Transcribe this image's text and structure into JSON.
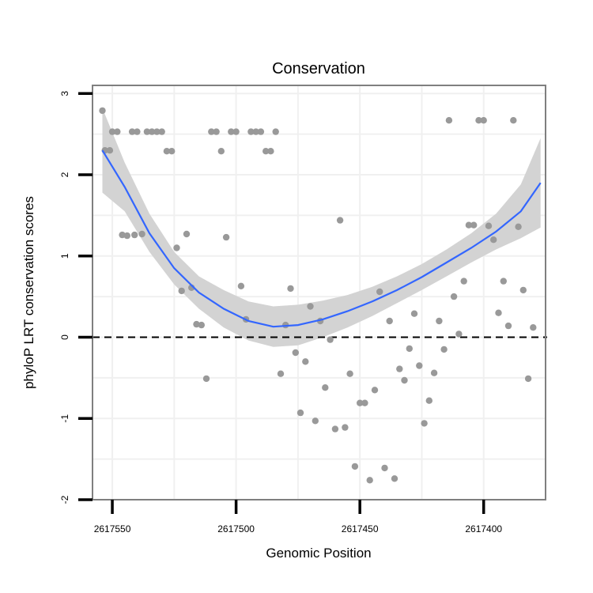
{
  "chart_data": {
    "type": "scatter",
    "title": "Conservation",
    "xlabel": "Genomic Position",
    "ylabel": "phyloP LRT conservation scores",
    "x_reversed": true,
    "xlim": [
      2617558,
      2617375
    ],
    "ylim": [
      -2,
      3.1
    ],
    "x_ticks": [
      2617550,
      2617500,
      2617450,
      2617400
    ],
    "x_tick_labels": [
      "2617550",
      "2617500",
      "2617450",
      "2617400"
    ],
    "y_ticks": [
      -2,
      -1,
      0,
      1,
      2,
      3
    ],
    "y_tick_labels": [
      "-2",
      "-1",
      "0",
      "1",
      "2",
      "3"
    ],
    "reference_line": {
      "y": 0,
      "style": "dashed"
    },
    "colors": {
      "points": "#999999",
      "smooth": "#3366ff",
      "ribbon": "#d3d3d3",
      "grid": "#f0f0f0",
      "frame": "#7f7f7f"
    },
    "points": [
      {
        "x": 2617554,
        "y": 2.79
      },
      {
        "x": 2617553,
        "y": 2.3
      },
      {
        "x": 2617551,
        "y": 2.3
      },
      {
        "x": 2617550,
        "y": 2.53
      },
      {
        "x": 2617548,
        "y": 2.53
      },
      {
        "x": 2617546,
        "y": 1.26
      },
      {
        "x": 2617544,
        "y": 1.25
      },
      {
        "x": 2617542,
        "y": 2.53
      },
      {
        "x": 2617541,
        "y": 1.26
      },
      {
        "x": 2617540,
        "y": 2.53
      },
      {
        "x": 2617538,
        "y": 1.27
      },
      {
        "x": 2617536,
        "y": 2.53
      },
      {
        "x": 2617534,
        "y": 2.53
      },
      {
        "x": 2617532,
        "y": 2.53
      },
      {
        "x": 2617530,
        "y": 2.53
      },
      {
        "x": 2617528,
        "y": 2.29
      },
      {
        "x": 2617526,
        "y": 2.29
      },
      {
        "x": 2617524,
        "y": 1.1
      },
      {
        "x": 2617522,
        "y": 0.57
      },
      {
        "x": 2617520,
        "y": 1.27
      },
      {
        "x": 2617518,
        "y": 0.61
      },
      {
        "x": 2617516,
        "y": 0.16
      },
      {
        "x": 2617514,
        "y": 0.15
      },
      {
        "x": 2617512,
        "y": -0.51
      },
      {
        "x": 2617510,
        "y": 2.53
      },
      {
        "x": 2617508,
        "y": 2.53
      },
      {
        "x": 2617506,
        "y": 2.29
      },
      {
        "x": 2617504,
        "y": 1.23
      },
      {
        "x": 2617502,
        "y": 2.53
      },
      {
        "x": 2617500,
        "y": 2.53
      },
      {
        "x": 2617498,
        "y": 0.63
      },
      {
        "x": 2617496,
        "y": 0.22
      },
      {
        "x": 2617494,
        "y": 2.53
      },
      {
        "x": 2617492,
        "y": 2.53
      },
      {
        "x": 2617490,
        "y": 2.53
      },
      {
        "x": 2617488,
        "y": 2.29
      },
      {
        "x": 2617486,
        "y": 2.29
      },
      {
        "x": 2617484,
        "y": 2.53
      },
      {
        "x": 2617482,
        "y": -0.45
      },
      {
        "x": 2617480,
        "y": 0.15
      },
      {
        "x": 2617478,
        "y": 0.6
      },
      {
        "x": 2617476,
        "y": -0.19
      },
      {
        "x": 2617474,
        "y": -0.93
      },
      {
        "x": 2617472,
        "y": -0.3
      },
      {
        "x": 2617470,
        "y": 0.38
      },
      {
        "x": 2617468,
        "y": -1.03
      },
      {
        "x": 2617466,
        "y": 0.2
      },
      {
        "x": 2617464,
        "y": -0.62
      },
      {
        "x": 2617462,
        "y": -0.03
      },
      {
        "x": 2617460,
        "y": -1.13
      },
      {
        "x": 2617458,
        "y": 1.44
      },
      {
        "x": 2617456,
        "y": -1.11
      },
      {
        "x": 2617454,
        "y": -0.45
      },
      {
        "x": 2617452,
        "y": -1.59
      },
      {
        "x": 2617450,
        "y": -0.81
      },
      {
        "x": 2617448,
        "y": -0.81
      },
      {
        "x": 2617446,
        "y": -1.76
      },
      {
        "x": 2617444,
        "y": -0.65
      },
      {
        "x": 2617442,
        "y": 0.56
      },
      {
        "x": 2617440,
        "y": -1.61
      },
      {
        "x": 2617438,
        "y": 0.2
      },
      {
        "x": 2617436,
        "y": -1.74
      },
      {
        "x": 2617434,
        "y": -0.39
      },
      {
        "x": 2617432,
        "y": -0.53
      },
      {
        "x": 2617430,
        "y": -0.14
      },
      {
        "x": 2617428,
        "y": 0.29
      },
      {
        "x": 2617426,
        "y": -0.35
      },
      {
        "x": 2617424,
        "y": -1.06
      },
      {
        "x": 2617422,
        "y": -0.78
      },
      {
        "x": 2617420,
        "y": -0.44
      },
      {
        "x": 2617418,
        "y": 0.2
      },
      {
        "x": 2617416,
        "y": -0.15
      },
      {
        "x": 2617414,
        "y": 2.67
      },
      {
        "x": 2617412,
        "y": 0.5
      },
      {
        "x": 2617410,
        "y": 0.04
      },
      {
        "x": 2617408,
        "y": 0.69
      },
      {
        "x": 2617406,
        "y": 1.38
      },
      {
        "x": 2617404,
        "y": 1.38
      },
      {
        "x": 2617402,
        "y": 2.67
      },
      {
        "x": 2617400,
        "y": 2.67
      },
      {
        "x": 2617398,
        "y": 1.37
      },
      {
        "x": 2617396,
        "y": 1.2
      },
      {
        "x": 2617394,
        "y": 0.3
      },
      {
        "x": 2617392,
        "y": 0.69
      },
      {
        "x": 2617390,
        "y": 0.14
      },
      {
        "x": 2617388,
        "y": 2.67
      },
      {
        "x": 2617386,
        "y": 1.36
      },
      {
        "x": 2617384,
        "y": 0.58
      },
      {
        "x": 2617382,
        "y": -0.51
      },
      {
        "x": 2617380,
        "y": 0.12
      }
    ],
    "smooth": [
      {
        "x": 2617554,
        "y": 2.3
      },
      {
        "x": 2617545,
        "y": 1.85
      },
      {
        "x": 2617535,
        "y": 1.28
      },
      {
        "x": 2617525,
        "y": 0.85
      },
      {
        "x": 2617515,
        "y": 0.55
      },
      {
        "x": 2617505,
        "y": 0.35
      },
      {
        "x": 2617495,
        "y": 0.2
      },
      {
        "x": 2617485,
        "y": 0.13
      },
      {
        "x": 2617475,
        "y": 0.15
      },
      {
        "x": 2617465,
        "y": 0.22
      },
      {
        "x": 2617455,
        "y": 0.32
      },
      {
        "x": 2617445,
        "y": 0.44
      },
      {
        "x": 2617435,
        "y": 0.58
      },
      {
        "x": 2617425,
        "y": 0.74
      },
      {
        "x": 2617415,
        "y": 0.92
      },
      {
        "x": 2617405,
        "y": 1.1
      },
      {
        "x": 2617395,
        "y": 1.3
      },
      {
        "x": 2617385,
        "y": 1.55
      },
      {
        "x": 2617377,
        "y": 1.9
      }
    ],
    "ribbon": [
      {
        "x": 2617554,
        "lo": 1.78,
        "hi": 2.82
      },
      {
        "x": 2617545,
        "lo": 1.55,
        "hi": 2.15
      },
      {
        "x": 2617535,
        "lo": 1.05,
        "hi": 1.52
      },
      {
        "x": 2617525,
        "lo": 0.65,
        "hi": 1.05
      },
      {
        "x": 2617515,
        "lo": 0.35,
        "hi": 0.75
      },
      {
        "x": 2617505,
        "lo": 0.12,
        "hi": 0.58
      },
      {
        "x": 2617495,
        "lo": -0.04,
        "hi": 0.44
      },
      {
        "x": 2617485,
        "lo": -0.12,
        "hi": 0.38
      },
      {
        "x": 2617475,
        "lo": -0.1,
        "hi": 0.4
      },
      {
        "x": 2617465,
        "lo": 0.0,
        "hi": 0.45
      },
      {
        "x": 2617455,
        "lo": 0.12,
        "hi": 0.52
      },
      {
        "x": 2617445,
        "lo": 0.26,
        "hi": 0.62
      },
      {
        "x": 2617435,
        "lo": 0.42,
        "hi": 0.75
      },
      {
        "x": 2617425,
        "lo": 0.58,
        "hi": 0.9
      },
      {
        "x": 2617415,
        "lo": 0.75,
        "hi": 1.08
      },
      {
        "x": 2617405,
        "lo": 0.92,
        "hi": 1.28
      },
      {
        "x": 2617395,
        "lo": 1.08,
        "hi": 1.52
      },
      {
        "x": 2617385,
        "lo": 1.22,
        "hi": 1.88
      },
      {
        "x": 2617377,
        "lo": 1.35,
        "hi": 2.45
      }
    ]
  }
}
